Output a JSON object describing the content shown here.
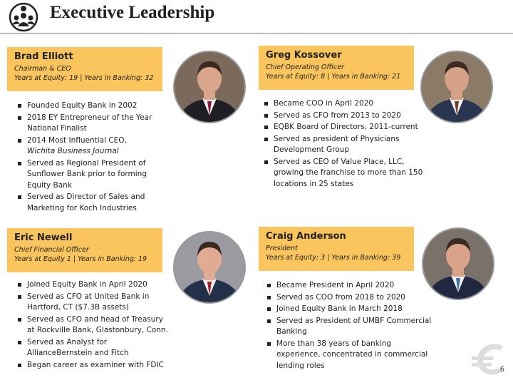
{
  "header": {
    "title": "Executive Leadership"
  },
  "executives": [
    {
      "name": "Brad Elliott",
      "role": "Chairman & CEO",
      "tenure": "Years at Equity: 19 | Years in Banking: 32",
      "bullets": [
        "Founded Equity Bank in 2002",
        "2018 EY Entrepreneur of the Year National Finalist",
        {
          "text": "2014 Most Influential CEO,",
          "emphasis": "Wichita Business Journal"
        },
        "Served as Regional President of Sunflower Bank prior to forming Equity Bank",
        "Served as Director of Sales and Marketing for Koch Industries"
      ]
    },
    {
      "name": "Greg Kossover",
      "role": "Chief Operating Officer",
      "tenure": "Years at Equity: 8 | Years in Banking: 21",
      "bullets": [
        "Became COO in April 2020",
        "Served as CFO from 2013 to 2020",
        "EQBK Board of Directors, 2011-current",
        "Served as president of Physicians Development Group",
        "Served as CEO of Value Place, LLC, growing the franchise to more than 150 locations in 25 states"
      ]
    },
    {
      "name": "Eric Newell",
      "role": "Chief Financial Officer",
      "tenure": "Years at Equity 1 | Years in Banking: 19",
      "bullets": [
        "Joined Equity Bank in April 2020",
        "Served as CFO at United Bank in Hartford, CT ($7.3B assets)",
        "Served as CFO and head of Treasury at Rockville Bank, Glastonbury, Conn.",
        "Served as Analyst for AllianceBernstein and Fitch",
        "Began career as examiner with FDIC"
      ]
    },
    {
      "name": "Craig Anderson",
      "role": "President",
      "tenure": "Years at Equity: 3 | Years in Banking: 39",
      "bullets": [
        "Became President in April 2020",
        "Served as COO from 2018 to 2020",
        "Joined Equity Bank in March 2018",
        "Served as President of UMBF Commercial Banking",
        "More than 38 years of banking experience, concentrated in commercial lending roles"
      ]
    }
  ],
  "page_number": "6"
}
